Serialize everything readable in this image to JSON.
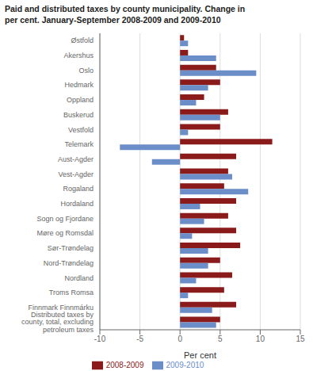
{
  "chart_data": {
    "type": "bar",
    "orientation": "horizontal",
    "title": "Paid and distributed taxes by county municipality. Change in\nper cent. January-September 2008-2009 and 2009-2010",
    "categories": [
      "Østfold",
      "Akershus",
      "Oslo",
      "Hedmark",
      "Oppland",
      "Buskerud",
      "Vestfold",
      "Telemark",
      "Aust-Agder",
      "Vest-Agder",
      "Rogaland",
      "Hordaland",
      "Sogn og Fjordane",
      "Møre og Romsdal",
      "Sør-Trøndelag",
      "Nord-Trøndelag",
      "Nordland",
      "Troms Romsa",
      "Finnmark Finnmárku",
      "Distributed taxes by\ncounty, total, excluding\npetroleum taxes"
    ],
    "series": [
      {
        "name": "2008-2009",
        "color": "#8B1A1A",
        "values": [
          0.5,
          1.0,
          4.5,
          5.0,
          3.0,
          6.0,
          5.0,
          11.5,
          7.0,
          6.0,
          5.5,
          7.0,
          6.0,
          7.0,
          7.5,
          5.0,
          6.5,
          5.5,
          7.0,
          5.0
        ]
      },
      {
        "name": "2009-2010",
        "color": "#6B8EC8",
        "values": [
          1.0,
          4.5,
          9.5,
          3.5,
          2.0,
          5.0,
          1.0,
          -7.5,
          -3.5,
          6.5,
          8.5,
          2.5,
          3.0,
          1.5,
          3.5,
          3.5,
          2.0,
          1.0,
          4.0,
          4.5
        ]
      }
    ],
    "xlabel": "Per cent",
    "xlim": [
      -10,
      15
    ],
    "xticks": [
      -10,
      -5,
      0,
      5,
      10,
      15
    ],
    "grid": true,
    "legend": "bottom"
  }
}
